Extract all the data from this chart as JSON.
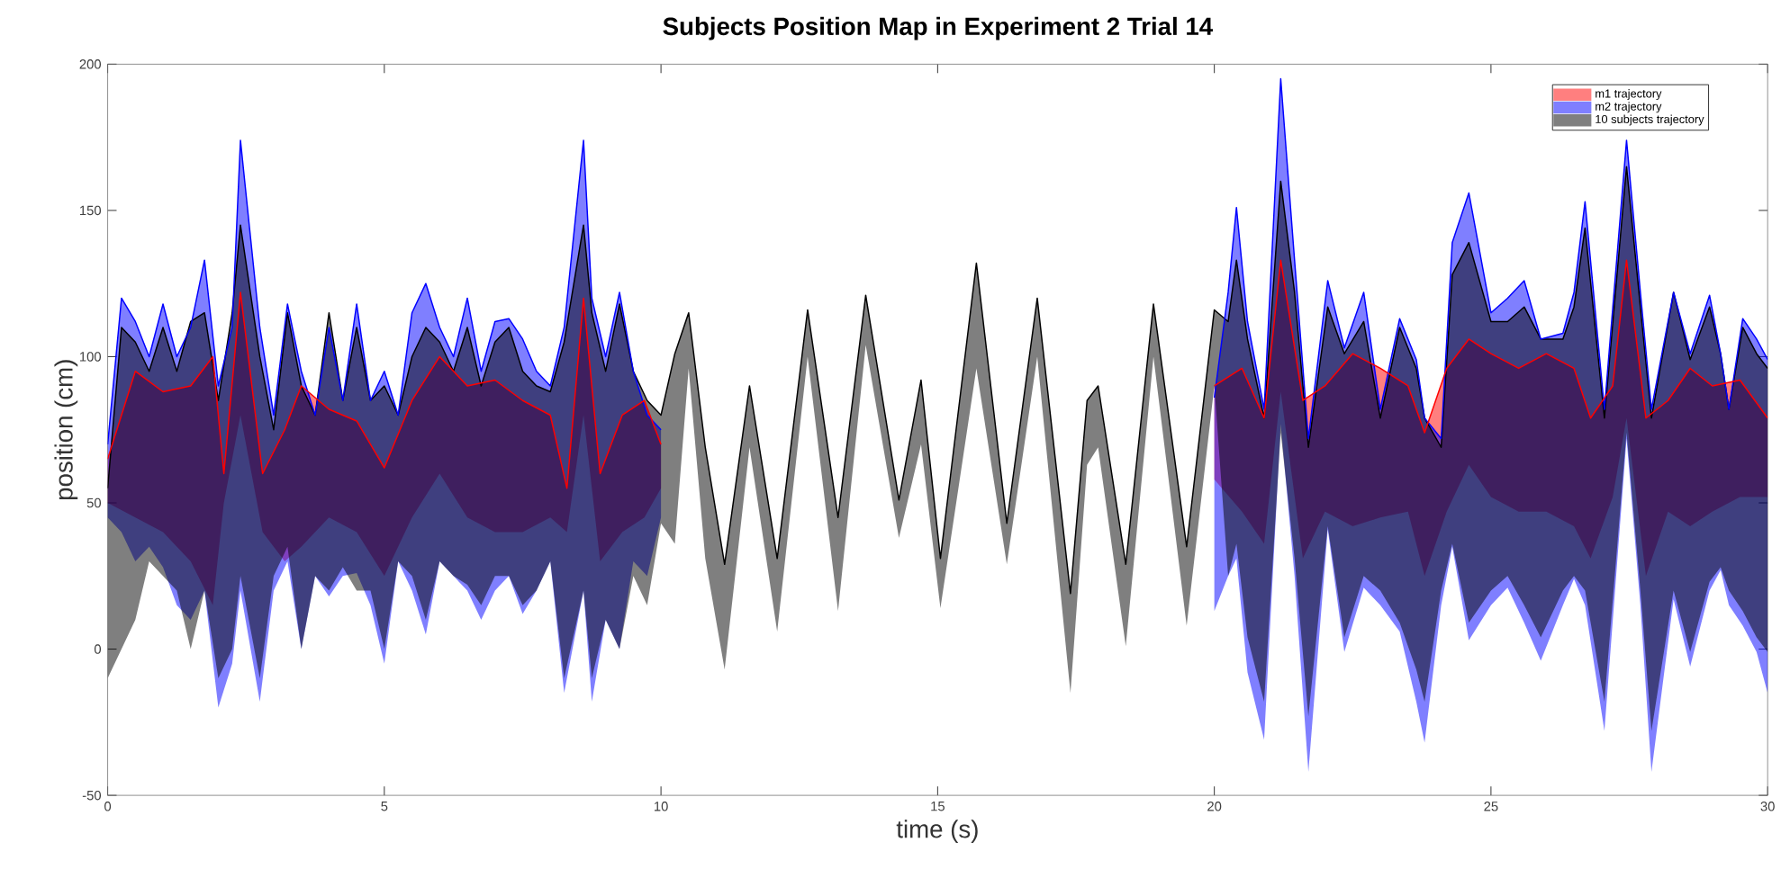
{
  "chart_data": {
    "type": "line",
    "title": "Subjects Position Map in Experiment 2 Trial 14",
    "xlabel": "time (s)",
    "ylabel": "position (cm)",
    "xlim": [
      0,
      30
    ],
    "ylim": [
      -50,
      200
    ],
    "xticks": [
      0,
      5,
      10,
      15,
      20,
      25,
      30
    ],
    "yticks": [
      -50,
      0,
      50,
      100,
      150,
      200
    ],
    "legend": "top right",
    "series": [
      {
        "name": "m1 trajectory",
        "color": "#ff0000",
        "x": [
          0,
          0.5,
          1,
          1.5,
          1.9,
          2.1,
          2.4,
          2.8,
          3.2,
          3.5,
          4,
          4.5,
          5,
          5.5,
          6,
          6.5,
          7,
          7.5,
          8,
          8.3,
          8.6,
          8.9,
          9.3,
          9.7,
          10,
          15,
          20.0,
          20.5,
          20.9,
          21.2,
          21.6,
          22.0,
          22.5,
          23.0,
          23.5,
          23.8,
          24.2,
          24.6,
          25.0,
          25.5,
          26.0,
          26.5,
          26.8,
          27.2,
          27.45,
          27.8,
          28.2,
          28.6,
          29.0,
          29.5,
          30.0
        ],
        "values": [
          65,
          95,
          88,
          90,
          100,
          60,
          122,
          60,
          75,
          90,
          82,
          78,
          62,
          85,
          100,
          90,
          92,
          85,
          80,
          55,
          120,
          60,
          80,
          85,
          70,
          null,
          90,
          96,
          79,
          133,
          85,
          90,
          101,
          96,
          90,
          74,
          96,
          106,
          101,
          96,
          101,
          96,
          79,
          90,
          133,
          79,
          85,
          96,
          90,
          92,
          79
        ],
        "upper": [
          65,
          95,
          88,
          90,
          100,
          60,
          122,
          60,
          75,
          90,
          82,
          78,
          62,
          85,
          100,
          90,
          92,
          85,
          80,
          55,
          120,
          60,
          80,
          85,
          70,
          null,
          90,
          96,
          79,
          133,
          85,
          90,
          101,
          96,
          90,
          74,
          96,
          106,
          101,
          96,
          101,
          96,
          79,
          90,
          133,
          79,
          85,
          96,
          90,
          92,
          79
        ],
        "lower": [
          50,
          45,
          40,
          30,
          15,
          50,
          80,
          40,
          30,
          35,
          45,
          40,
          25,
          45,
          60,
          45,
          40,
          40,
          45,
          40,
          80,
          30,
          40,
          45,
          55,
          null,
          58,
          47,
          36,
          88,
          31,
          47,
          42,
          45,
          47,
          25,
          47,
          63,
          52,
          47,
          47,
          42,
          31,
          52,
          79,
          25,
          47,
          42,
          47,
          52,
          52
        ]
      },
      {
        "name": "m2 trajectory",
        "color": "#0000ff",
        "x": [
          0,
          0.25,
          0.5,
          0.75,
          1,
          1.25,
          1.5,
          1.75,
          2,
          2.25,
          2.4,
          2.75,
          3,
          3.25,
          3.5,
          3.75,
          4,
          4.25,
          4.5,
          4.75,
          5,
          5.25,
          5.5,
          5.75,
          6,
          6.25,
          6.5,
          6.75,
          7,
          7.25,
          7.5,
          7.75,
          8,
          8.25,
          8.6,
          8.75,
          9,
          9.25,
          9.5,
          9.75,
          10,
          15,
          20.0,
          20.25,
          20.4,
          20.6,
          20.9,
          21.2,
          21.45,
          21.7,
          22.05,
          22.35,
          22.7,
          23.0,
          23.35,
          23.65,
          23.8,
          24.1,
          24.3,
          24.6,
          25.0,
          25.3,
          25.6,
          25.9,
          26.3,
          26.5,
          26.7,
          27.05,
          27.45,
          27.7,
          27.9,
          28.3,
          28.6,
          28.95,
          29.15,
          29.3,
          29.55,
          29.8,
          30.0
        ],
        "values": [
          70,
          120,
          112,
          100,
          118,
          100,
          110,
          133,
          90,
          110,
          174,
          110,
          80,
          118,
          95,
          80,
          110,
          85,
          118,
          85,
          95,
          80,
          115,
          125,
          110,
          100,
          120,
          95,
          112,
          113,
          106,
          95,
          90,
          110,
          174,
          120,
          100,
          122,
          95,
          80,
          75,
          null,
          86,
          122,
          151,
          112,
          82,
          195,
          133,
          72,
          126,
          103,
          122,
          82,
          113,
          99,
          79,
          72,
          139,
          156,
          115,
          120,
          126,
          106,
          108,
          122,
          153,
          82,
          174,
          122,
          82,
          122,
          101,
          121,
          101,
          82,
          113,
          106,
          99
        ],
        "upper": [
          70,
          120,
          112,
          100,
          118,
          100,
          110,
          133,
          90,
          110,
          174,
          110,
          80,
          118,
          95,
          80,
          110,
          85,
          118,
          85,
          95,
          80,
          115,
          125,
          110,
          100,
          120,
          95,
          112,
          113,
          106,
          95,
          90,
          110,
          174,
          120,
          100,
          122,
          95,
          80,
          75,
          null,
          86,
          122,
          151,
          112,
          82,
          195,
          133,
          72,
          126,
          103,
          122,
          82,
          113,
          99,
          79,
          72,
          139,
          156,
          115,
          120,
          126,
          106,
          108,
          122,
          153,
          82,
          174,
          122,
          82,
          122,
          101,
          121,
          101,
          82,
          113,
          106,
          99
        ],
        "lower": [
          45,
          40,
          30,
          35,
          28,
          15,
          10,
          20,
          -20,
          -5,
          20,
          -18,
          20,
          30,
          0,
          25,
          18,
          25,
          26,
          15,
          -5,
          30,
          20,
          5,
          30,
          25,
          20,
          10,
          20,
          25,
          12,
          20,
          30,
          -15,
          20,
          -18,
          10,
          0,
          30,
          25,
          45,
          null,
          13,
          25,
          31,
          -8,
          -31,
          77,
          25,
          -42,
          41,
          -1,
          21,
          15,
          6,
          -18,
          -32,
          15,
          35,
          3,
          15,
          21,
          9,
          -4,
          15,
          24,
          15,
          -28,
          72,
          15,
          -42,
          17,
          -6,
          20,
          27,
          15,
          8,
          -1,
          -15
        ]
      },
      {
        "name": "10 subjects trajectory",
        "color": "#000000",
        "x": [
          0,
          0.25,
          0.5,
          0.75,
          1,
          1.25,
          1.5,
          1.75,
          2,
          2.25,
          2.4,
          2.75,
          3,
          3.25,
          3.5,
          3.75,
          4,
          4.25,
          4.5,
          4.75,
          5,
          5.25,
          5.5,
          5.75,
          6,
          6.25,
          6.5,
          6.75,
          7,
          7.25,
          7.5,
          7.75,
          8,
          8.25,
          8.6,
          8.75,
          9,
          9.25,
          9.5,
          9.75,
          10,
          10.25,
          10.5,
          10.8,
          11.15,
          11.6,
          12.1,
          12.65,
          13.2,
          13.7,
          14.3,
          14.7,
          15.05,
          15.7,
          16.25,
          16.8,
          17.4,
          17.7,
          17.9,
          18.4,
          18.9,
          19.5,
          20.0,
          20.25,
          20.4,
          20.6,
          20.9,
          21.2,
          21.45,
          21.7,
          22.05,
          22.35,
          22.7,
          23.0,
          23.35,
          23.65,
          23.8,
          24.1,
          24.3,
          24.6,
          25.0,
          25.3,
          25.6,
          25.9,
          26.3,
          26.5,
          26.7,
          27.05,
          27.45,
          27.7,
          27.9,
          28.3,
          28.6,
          28.95,
          29.15,
          29.3,
          29.55,
          29.8,
          30.0
        ],
        "values": [
          55,
          110,
          105,
          95,
          110,
          95,
          112,
          115,
          85,
          115,
          145,
          100,
          75,
          115,
          90,
          80,
          115,
          85,
          110,
          85,
          90,
          80,
          100,
          110,
          105,
          95,
          110,
          90,
          105,
          110,
          95,
          90,
          88,
          105,
          145,
          115,
          95,
          118,
          95,
          85,
          80,
          101,
          115,
          69,
          29,
          90,
          31,
          116,
          45,
          121,
          51,
          92,
          31,
          132,
          43,
          120,
          19,
          85,
          90,
          29,
          118,
          35,
          116,
          112,
          133,
          106,
          79,
          160,
          122,
          69,
          117,
          101,
          112,
          79,
          110,
          96,
          79,
          69,
          128,
          139,
          112,
          112,
          117,
          106,
          106,
          117,
          144,
          79,
          165,
          117,
          79,
          122,
          99,
          117,
          101,
          82,
          110,
          101,
          96
        ],
        "upper": [
          55,
          110,
          105,
          95,
          110,
          95,
          112,
          115,
          85,
          115,
          145,
          100,
          75,
          115,
          90,
          80,
          115,
          85,
          110,
          85,
          90,
          80,
          100,
          110,
          105,
          95,
          110,
          90,
          105,
          110,
          95,
          90,
          88,
          105,
          145,
          115,
          95,
          118,
          95,
          85,
          80,
          101,
          115,
          69,
          29,
          90,
          31,
          116,
          45,
          121,
          51,
          92,
          31,
          132,
          43,
          120,
          19,
          85,
          90,
          29,
          118,
          35,
          116,
          112,
          133,
          106,
          79,
          160,
          122,
          69,
          117,
          101,
          112,
          79,
          110,
          96,
          79,
          69,
          128,
          139,
          112,
          112,
          117,
          106,
          106,
          117,
          144,
          79,
          165,
          117,
          79,
          122,
          99,
          117,
          101,
          82,
          110,
          101,
          96
        ],
        "lower": [
          -10,
          0,
          10,
          30,
          25,
          20,
          0,
          20,
          -10,
          0,
          25,
          -10,
          25,
          35,
          0,
          25,
          20,
          28,
          20,
          20,
          0,
          30,
          25,
          10,
          30,
          25,
          22,
          15,
          25,
          25,
          15,
          20,
          30,
          -10,
          20,
          -10,
          10,
          0,
          25,
          15,
          43,
          36,
          96,
          31,
          -7,
          69,
          6,
          100,
          13,
          104,
          38,
          70,
          14,
          96,
          29,
          100,
          -15,
          63,
          69,
          1,
          100,
          8,
          90,
          25,
          36,
          4,
          -18,
          74,
          31,
          -23,
          42,
          4,
          25,
          20,
          9,
          -7,
          -18,
          20,
          36,
          9,
          20,
          25,
          15,
          4,
          20,
          25,
          20,
          -18,
          74,
          20,
          -28,
          20,
          -1,
          23,
          28,
          20,
          13,
          4,
          -1
        ]
      }
    ]
  }
}
